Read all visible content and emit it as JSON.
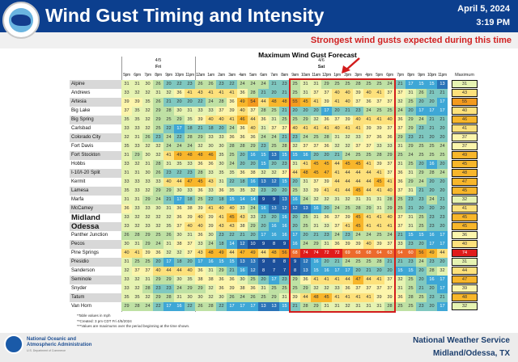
{
  "header": {
    "title": "Wind Gust Timing and Intensity",
    "date": "April 5, 2024",
    "time": "3:19 PM",
    "logo_text": "NATIONAL WEATHER SERVICE",
    "callout": "Strongest wind gusts expected during this time"
  },
  "colors": {
    "header_bg": "#0c3f8e",
    "callout": "#d01f1f",
    "highlight_box": "#d21c1c"
  },
  "chart_data": {
    "type": "heatmap",
    "title": "Maximum Wind Gust Forecast",
    "day_groups": [
      {
        "date": "4/5",
        "day": "Fri"
      },
      {
        "date": "4/6",
        "day": "Sat"
      }
    ],
    "hours": [
      "5pm",
      "6pm",
      "7pm",
      "8pm",
      "9pm",
      "10pm",
      "11pm",
      "12am",
      "1am",
      "2am",
      "3am",
      "4am",
      "5am",
      "6am",
      "7am",
      "8am",
      "9am",
      "10am",
      "11am",
      "12pm",
      "1pm",
      "2pm",
      "3pm",
      "4pm",
      "5pm",
      "6pm",
      "7pm",
      "8pm",
      "9pm",
      "10pm",
      "11pm"
    ],
    "max_header": "Maximum",
    "highlight": {
      "from": "9am",
      "to": "6pm",
      "date": "4/6"
    },
    "rows": [
      {
        "station": "Alpine",
        "values": [
          31,
          31,
          30,
          26,
          20,
          22,
          23,
          26,
          26,
          23,
          22,
          24,
          24,
          24,
          21,
          23,
          25,
          31,
          31,
          29,
          25,
          25,
          28,
          25,
          25,
          24,
          21,
          17,
          15,
          15,
          13
        ],
        "max": 31
      },
      {
        "station": "Andrews",
        "values": [
          33,
          32,
          32,
          31,
          32,
          36,
          41,
          43,
          41,
          41,
          41,
          36,
          28,
          21,
          20,
          21,
          25,
          31,
          37,
          37,
          40,
          40,
          39,
          40,
          41,
          37,
          37,
          31,
          26,
          21,
          21
        ],
        "max": 43
      },
      {
        "station": "Artesia",
        "values": [
          39,
          39,
          35,
          26,
          21,
          20,
          20,
          22,
          24,
          28,
          36,
          49,
          54,
          44,
          48,
          48,
          55,
          45,
          41,
          39,
          41,
          40,
          37,
          36,
          37,
          37,
          32,
          25,
          20,
          20,
          17
        ],
        "max": 55
      },
      {
        "station": "Big Lake",
        "values": [
          37,
          35,
          32,
          29,
          28,
          30,
          31,
          33,
          33,
          37,
          39,
          40,
          37,
          28,
          25,
          21,
          20,
          20,
          20,
          17,
          20,
          21,
          23,
          24,
          25,
          25,
          24,
          20,
          17,
          17,
          17
        ],
        "max": 40
      },
      {
        "station": "Big Spring",
        "values": [
          35,
          35,
          32,
          29,
          25,
          29,
          35,
          39,
          40,
          40,
          41,
          46,
          44,
          36,
          31,
          25,
          25,
          29,
          32,
          36,
          37,
          39,
          40,
          41,
          41,
          40,
          36,
          29,
          24,
          21,
          21
        ],
        "max": 46
      },
      {
        "station": "Carlsbad",
        "values": [
          33,
          33,
          32,
          25,
          22,
          17,
          18,
          21,
          18,
          20,
          24,
          36,
          40,
          31,
          37,
          37,
          40,
          41,
          41,
          41,
          40,
          41,
          41,
          39,
          39,
          37,
          37,
          29,
          23,
          21,
          20
        ],
        "max": 41
      },
      {
        "station": "Colorado City",
        "values": [
          32,
          31,
          26,
          23,
          24,
          22,
          28,
          29,
          33,
          33,
          36,
          36,
          36,
          24,
          24,
          21,
          23,
          24,
          25,
          28,
          31,
          32,
          33,
          37,
          36,
          36,
          29,
          23,
          21,
          20,
          20
        ],
        "max": 37
      },
      {
        "station": "Fort Davis",
        "values": [
          35,
          33,
          32,
          32,
          24,
          24,
          24,
          32,
          30,
          30,
          28,
          28,
          29,
          23,
          25,
          28,
          32,
          37,
          37,
          36,
          32,
          32,
          37,
          37,
          33,
          33,
          31,
          29,
          25,
          25,
          24
        ],
        "max": 37
      },
      {
        "station": "Fort Stockton",
        "values": [
          31,
          29,
          30,
          32,
          41,
          49,
          48,
          48,
          46,
          35,
          25,
          20,
          16,
          15,
          13,
          15,
          15,
          16,
          20,
          20,
          21,
          24,
          25,
          25,
          28,
          29,
          25,
          24,
          25,
          25,
          25
        ],
        "max": 49
      },
      {
        "station": "Hobbs",
        "values": [
          33,
          32,
          31,
          28,
          31,
          35,
          33,
          36,
          36,
          30,
          24,
          20,
          20,
          15,
          20,
          23,
          31,
          41,
          45,
          45,
          44,
          45,
          45,
          41,
          39,
          37,
          31,
          25,
          20,
          16,
          20
        ],
        "max": 45
      },
      {
        "station": "I-10/I-20 Split",
        "values": [
          31,
          31,
          30,
          26,
          23,
          22,
          23,
          28,
          33,
          35,
          35,
          36,
          38,
          32,
          32,
          37,
          44,
          48,
          45,
          47,
          41,
          44,
          44,
          44,
          41,
          37,
          36,
          31,
          29,
          28,
          24
        ],
        "max": 48
      },
      {
        "station": "Kermit",
        "values": [
          33,
          33,
          33,
          33,
          40,
          44,
          47,
          45,
          43,
          31,
          22,
          18,
          16,
          13,
          12,
          15,
          20,
          31,
          37,
          39,
          44,
          44,
          44,
          44,
          45,
          41,
          36,
          29,
          24,
          20,
          20
        ],
        "max": 47
      },
      {
        "station": "Lamesa",
        "values": [
          35,
          33,
          32,
          29,
          29,
          30,
          33,
          36,
          33,
          36,
          35,
          35,
          32,
          23,
          20,
          20,
          25,
          33,
          39,
          41,
          41,
          44,
          45,
          44,
          41,
          40,
          37,
          31,
          21,
          20,
          20
        ],
        "max": 45
      },
      {
        "station": "Marfa",
        "values": [
          31,
          31,
          29,
          24,
          21,
          17,
          18,
          25,
          22,
          18,
          15,
          14,
          14,
          9,
          9,
          13,
          16,
          24,
          32,
          32,
          31,
          32,
          31,
          31,
          31,
          28,
          25,
          23,
          23,
          24,
          21
        ],
        "max": 32
      },
      {
        "station": "McCamey",
        "values": [
          36,
          33,
          33,
          30,
          31,
          36,
          38,
          39,
          41,
          40,
          40,
          33,
          24,
          16,
          13,
          12,
          12,
          13,
          16,
          20,
          24,
          25,
          28,
          29,
          31,
          29,
          25,
          21,
          20,
          20,
          20
        ],
        "max": 41
      },
      {
        "station": "Midland",
        "values": [
          33,
          32,
          32,
          32,
          32,
          36,
          39,
          40,
          39,
          41,
          45,
          43,
          33,
          23,
          20,
          16,
          20,
          25,
          31,
          36,
          37,
          39,
          45,
          41,
          41,
          40,
          37,
          31,
          25,
          23,
          23
        ],
        "max": 45
      },
      {
        "station": "Odessa",
        "values": [
          33,
          32,
          33,
          32,
          35,
          37,
          40,
          40,
          39,
          43,
          43,
          38,
          29,
          20,
          16,
          16,
          20,
          25,
          31,
          33,
          37,
          41,
          45,
          41,
          41,
          41,
          37,
          31,
          25,
          23,
          20
        ],
        "max": 45
      },
      {
        "station": "Panther Junction",
        "values": [
          26,
          28,
          29,
          25,
          26,
          30,
          31,
          36,
          30,
          23,
          22,
          21,
          20,
          17,
          16,
          16,
          17,
          20,
          21,
          23,
          24,
          23,
          24,
          24,
          25,
          24,
          21,
          15,
          15,
          16,
          17
        ],
        "max": 36
      },
      {
        "station": "Pecos",
        "values": [
          30,
          31,
          29,
          24,
          31,
          38,
          37,
          33,
          24,
          18,
          14,
          12,
          10,
          9,
          8,
          9,
          16,
          24,
          29,
          31,
          36,
          39,
          39,
          40,
          39,
          37,
          33,
          23,
          20,
          17,
          17
        ],
        "max": 40
      },
      {
        "station": "Pine Springs",
        "values": [
          40,
          41,
          39,
          36,
          32,
          32,
          37,
          43,
          48,
          49,
          44,
          47,
          49,
          44,
          48,
          56,
          68,
          74,
          74,
          72,
          72,
          69,
          68,
          68,
          64,
          63,
          64,
          60,
          56,
          49,
          44
        ],
        "max": 74
      },
      {
        "station": "Presidio",
        "values": [
          31,
          25,
          25,
          20,
          17,
          18,
          20,
          17,
          16,
          15,
          15,
          13,
          13,
          9,
          8,
          8,
          9,
          12,
          16,
          20,
          21,
          24,
          25,
          25,
          28,
          21,
          21,
          23,
          24,
          23,
          20
        ],
        "max": 31
      },
      {
        "station": "Sanderson",
        "values": [
          32,
          37,
          37,
          40,
          44,
          44,
          40,
          36,
          31,
          29,
          21,
          16,
          12,
          8,
          7,
          7,
          8,
          13,
          15,
          16,
          17,
          17,
          20,
          21,
          20,
          20,
          15,
          15,
          20,
          28,
          32
        ],
        "max": 44
      },
      {
        "station": "Seminole",
        "values": [
          33,
          32,
          31,
          29,
          29,
          30,
          35,
          38,
          38,
          36,
          36,
          30,
          25,
          20,
          17,
          23,
          29,
          36,
          41,
          41,
          41,
          44,
          47,
          44,
          41,
          37,
          32,
          25,
          20,
          16,
          17
        ],
        "max": 47
      },
      {
        "station": "Snyder",
        "values": [
          33,
          32,
          28,
          23,
          23,
          24,
          29,
          29,
          32,
          36,
          39,
          38,
          36,
          31,
          25,
          25,
          25,
          29,
          32,
          32,
          33,
          36,
          37,
          37,
          37,
          37,
          31,
          25,
          21,
          20,
          17
        ],
        "max": 39
      },
      {
        "station": "Tatum",
        "values": [
          35,
          35,
          32,
          29,
          28,
          31,
          30,
          30,
          32,
          30,
          26,
          24,
          26,
          25,
          29,
          31,
          39,
          44,
          48,
          45,
          41,
          41,
          41,
          41,
          39,
          39,
          36,
          28,
          25,
          23,
          21
        ],
        "max": 48
      },
      {
        "station": "Van Horn",
        "values": [
          29,
          28,
          24,
          22,
          17,
          16,
          22,
          26,
          28,
          22,
          17,
          17,
          17,
          13,
          13,
          15,
          21,
          28,
          29,
          31,
          31,
          32,
          31,
          31,
          31,
          28,
          25,
          25,
          23,
          20,
          17
        ],
        "max": 32
      }
    ],
    "bold_stations": [
      "Midland",
      "Odessa"
    ]
  },
  "footnotes": [
    "*Table values in mph",
    "**Created: 3 pm CDT Fri 4/5/2024",
    "***Values are maximums over the period beginning at the time shown."
  ],
  "footer": {
    "noaa_line1": "National Oceanic and",
    "noaa_line2": "Atmospheric Administration",
    "noaa_sub": "U.S. Department of Commerce",
    "office_line1": "National Weather Service",
    "office_line2": "Midland/Odessa, TX"
  }
}
